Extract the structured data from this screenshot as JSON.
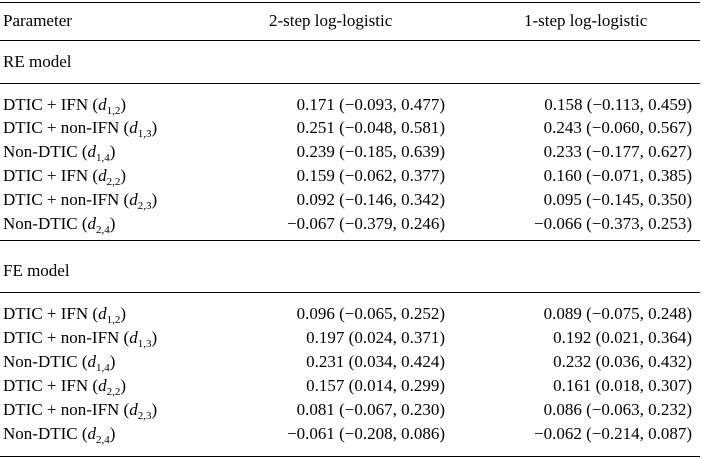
{
  "header": {
    "param_label": "Parameter",
    "two_step_label": "2-step log-logistic",
    "one_step_label": "1-step log-logistic"
  },
  "sections": [
    {
      "label": "RE model",
      "rows": [
        {
          "name": "DTIC + IFN (",
          "sym": "d",
          "sub": "1,2",
          "close": ")",
          "two_step": "0.171 (−0.093, 0.477)",
          "one_step": "0.158 (−0.113, 0.459)"
        },
        {
          "name": "DTIC + non-IFN (",
          "sym": "d",
          "sub": "1,3",
          "close": ")",
          "two_step": "0.251 (−0.048, 0.581)",
          "one_step": "0.243 (−0.060, 0.567)"
        },
        {
          "name": "Non-DTIC (",
          "sym": "d",
          "sub": "1,4",
          "close": ")",
          "two_step": "0.239 (−0.185, 0.639)",
          "one_step": "0.233 (−0.177, 0.627)"
        },
        {
          "name": "DTIC + IFN (",
          "sym": "d",
          "sub": "2,2",
          "close": ")",
          "two_step": "0.159 (−0.062, 0.377)",
          "one_step": "0.160 (−0.071, 0.385)"
        },
        {
          "name": "DTIC + non-IFN (",
          "sym": "d",
          "sub": "2,3",
          "close": ")",
          "two_step": "0.092 (−0.146, 0.342)",
          "one_step": "0.095 (−0.145, 0.350)"
        },
        {
          "name": "Non-DTIC (",
          "sym": "d",
          "sub": "2,4",
          "close": ")",
          "two_step": "−0.067 (−0.379, 0.246)",
          "one_step": "−0.066 (−0.373, 0.253)"
        }
      ]
    },
    {
      "label": "FE model",
      "rows": [
        {
          "name": "DTIC + IFN (",
          "sym": "d",
          "sub": "1,2",
          "close": ")",
          "two_step": "0.096 (−0.065, 0.252)",
          "one_step": "0.089 (−0.075, 0.248)"
        },
        {
          "name": "DTIC + non-IFN (",
          "sym": "d",
          "sub": "1,3",
          "close": ")",
          "two_step": "0.197 (0.024, 0.371)",
          "one_step": "0.192 (0.021, 0.364)"
        },
        {
          "name": "Non-DTIC (",
          "sym": "d",
          "sub": "1,4",
          "close": ")",
          "two_step": "0.231 (0.034, 0.424)",
          "one_step": "0.232 (0.036, 0.432)"
        },
        {
          "name": "DTIC + IFN (",
          "sym": "d",
          "sub": "2,2",
          "close": ")",
          "two_step": "0.157 (0.014, 0.299)",
          "one_step": "0.161 (0.018, 0.307)"
        },
        {
          "name": "DTIC + non-IFN (",
          "sym": "d",
          "sub": "2,3",
          "close": ")",
          "two_step": "0.081 (−0.067, 0.230)",
          "one_step": "0.086 (−0.063, 0.232)"
        },
        {
          "name": "Non-DTIC (",
          "sym": "d",
          "sub": "2,4",
          "close": ")",
          "two_step": "−0.061 (−0.208, 0.086)",
          "one_step": "−0.062 (−0.214, 0.087)"
        }
      ]
    }
  ]
}
